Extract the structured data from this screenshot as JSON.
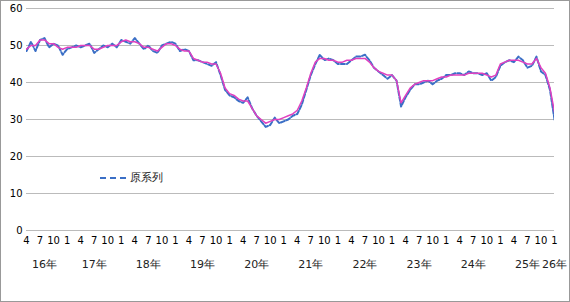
{
  "chart_data": {
    "type": "line",
    "categories": [
      "4",
      null,
      null,
      "7",
      null,
      null,
      "10",
      null,
      null,
      "1",
      null,
      null,
      "4",
      null,
      null,
      "7",
      null,
      null,
      "10",
      null,
      null,
      "1",
      null,
      null,
      "4",
      null,
      null,
      "7",
      null,
      null,
      "10",
      null,
      null,
      "1",
      null,
      null,
      "4",
      null,
      null,
      "7",
      null,
      null,
      "10",
      null,
      null,
      "1",
      null,
      null,
      "4",
      null,
      null,
      "7",
      null,
      null,
      "10",
      null,
      null,
      "1",
      null,
      null,
      "4",
      null,
      null,
      "7",
      null,
      null,
      "10",
      null,
      null,
      "1",
      null,
      null,
      "4",
      null,
      null,
      "7",
      null,
      null,
      "10",
      null,
      null,
      "1",
      null,
      null,
      "4",
      null,
      null,
      "7",
      null,
      null,
      "10",
      null,
      null,
      "1",
      null,
      null,
      "4",
      null,
      null,
      "7",
      null,
      null,
      "10",
      null,
      null,
      "1",
      null,
      null,
      "4",
      null,
      null,
      "7",
      null,
      null,
      "10",
      null,
      null,
      "1"
    ],
    "year_labels": [
      "16年",
      "17年",
      "18年",
      "19年",
      "20年",
      "21年",
      "22年",
      "23年",
      "24年",
      "25年",
      "26年"
    ],
    "series": [
      {
        "name": "原系列",
        "color": "#3b6fc6",
        "line_style": "dashed",
        "values": [
          48.5,
          51,
          48.5,
          51.5,
          52,
          49.5,
          50.5,
          50,
          47.5,
          49,
          49.5,
          50,
          49.5,
          50,
          50.5,
          48,
          49,
          50,
          49.5,
          50.5,
          49.5,
          51.5,
          51,
          50.5,
          52,
          50.5,
          49,
          50,
          48.5,
          48,
          50,
          50.5,
          51,
          50.5,
          48.5,
          49,
          48.5,
          46,
          46,
          45.5,
          45,
          44.5,
          45.5,
          42,
          38,
          36.5,
          36,
          35,
          34.5,
          36,
          33,
          31,
          29.5,
          28,
          28.5,
          30.5,
          29,
          29.5,
          30,
          31,
          31.5,
          34,
          38,
          42,
          45,
          47.5,
          46,
          46.5,
          46,
          45,
          45,
          45,
          46,
          47,
          47,
          47.5,
          46,
          44,
          43,
          42,
          41,
          42,
          40.5,
          33.5,
          36,
          38,
          39.5,
          39.5,
          40,
          40.5,
          39.5,
          40.5,
          41,
          42,
          42,
          42.5,
          42.5,
          42,
          43,
          42.5,
          42.5,
          42,
          42.5,
          40.5,
          41.5,
          44.5,
          45.5,
          46,
          45.5,
          47,
          46,
          44,
          44.5,
          47,
          43,
          42,
          38,
          30
        ]
      },
      {
        "color": "#e040c0",
        "line_style": "solid",
        "values": [
          49,
          50,
          50,
          51.5,
          51.5,
          50.5,
          50.5,
          49.5,
          49,
          49.5,
          49.5,
          49.5,
          50,
          50,
          50,
          49,
          49,
          49.5,
          50,
          50,
          50,
          51,
          51.5,
          51,
          51,
          50.5,
          49.5,
          49.5,
          49,
          48.5,
          49.5,
          50.5,
          50.5,
          50,
          49,
          48.5,
          48.5,
          46.5,
          46,
          45.5,
          45.5,
          45,
          45,
          42.5,
          38.5,
          37,
          36.5,
          35.5,
          35,
          35,
          33,
          31,
          30,
          29,
          29.5,
          30,
          30,
          30.5,
          31,
          31.5,
          32.5,
          35,
          38.5,
          42.5,
          45.5,
          46.5,
          46.5,
          46,
          46,
          45.5,
          45.5,
          46,
          46,
          46.5,
          46.5,
          46.5,
          45.5,
          44,
          43,
          42.5,
          42,
          42,
          40.5,
          34.5,
          36.5,
          38.5,
          39.5,
          40,
          40.5,
          40.5,
          40.5,
          41,
          41.5,
          41.5,
          42,
          42,
          42,
          42,
          42.5,
          42.5,
          42.5,
          42.5,
          42,
          41.5,
          42,
          45,
          45.5,
          46,
          46,
          46,
          45.5,
          45,
          45,
          46.5,
          44,
          42.5,
          38.5,
          32
        ]
      }
    ],
    "ylim": [
      0,
      60
    ],
    "yticks": [
      0,
      10,
      20,
      30,
      40,
      50,
      60
    ],
    "grid": true,
    "legend": "left"
  }
}
